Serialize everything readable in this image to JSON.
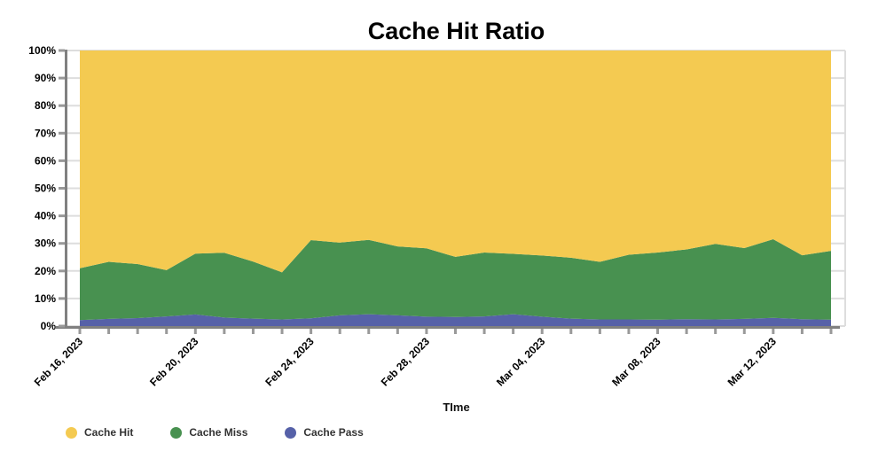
{
  "page": {
    "background": "#ffffff"
  },
  "chart_data": {
    "type": "area",
    "stacked": true,
    "title": "Cache Hit Ratio",
    "xlabel": "TIme",
    "ylabel": "",
    "ylim": [
      0,
      100
    ],
    "grid": true,
    "legend_position": "bottom-left",
    "axis_color": "#808080",
    "tick_color": "#999999",
    "grid_color": "#dddddd",
    "label_color": "#000000",
    "y_tick_labels": [
      "0%",
      "10%",
      "20%",
      "30%",
      "40%",
      "50%",
      "60%",
      "70%",
      "80%",
      "90%",
      "100%"
    ],
    "x_label_every": 4,
    "x": [
      "Feb 16, 2023",
      "Feb 17, 2023",
      "Feb 18, 2023",
      "Feb 19, 2023",
      "Feb 20, 2023",
      "Feb 21, 2023",
      "Feb 22, 2023",
      "Feb 23, 2023",
      "Feb 24, 2023",
      "Feb 25, 2023",
      "Feb 26, 2023",
      "Feb 27, 2023",
      "Feb 28, 2023",
      "Mar 01, 2023",
      "Mar 02, 2023",
      "Mar 03, 2023",
      "Mar 04, 2023",
      "Mar 05, 2023",
      "Mar 06, 2023",
      "Mar 07, 2023",
      "Mar 08, 2023",
      "Mar 09, 2023",
      "Mar 10, 2023",
      "Mar 11, 2023",
      "Mar 12, 2023",
      "Mar 13, 2023",
      "Mar 14, 2023"
    ],
    "series": [
      {
        "name": "Cache Hit",
        "color": "#F4CA51",
        "values": [
          79.0,
          76.7,
          77.5,
          79.7,
          73.7,
          73.4,
          76.6,
          80.5,
          68.8,
          69.7,
          68.7,
          71.1,
          71.8,
          74.9,
          73.3,
          73.8,
          74.4,
          75.2,
          76.7,
          74.1,
          73.3,
          72.2,
          70.2,
          71.7,
          68.5,
          74.3,
          72.7
        ]
      },
      {
        "name": "Cache Miss",
        "color": "#489150",
        "values": [
          18.8,
          20.7,
          19.6,
          16.8,
          22.1,
          23.5,
          20.7,
          17.1,
          28.4,
          26.4,
          27.0,
          25.0,
          24.8,
          21.8,
          23.2,
          21.9,
          22.2,
          22.1,
          20.9,
          23.5,
          24.4,
          25.3,
          27.4,
          25.7,
          28.5,
          23.2,
          25.0
        ]
      },
      {
        "name": "Cache Pass",
        "color": "#5661A8",
        "values": [
          2.2,
          2.6,
          2.9,
          3.5,
          4.2,
          3.1,
          2.7,
          2.4,
          2.8,
          3.9,
          4.3,
          3.9,
          3.4,
          3.3,
          3.5,
          4.3,
          3.4,
          2.7,
          2.4,
          2.4,
          2.3,
          2.5,
          2.4,
          2.6,
          3.0,
          2.5,
          2.3
        ]
      }
    ],
    "stack_order_bottom_to_top": [
      "Cache Pass",
      "Cache Miss",
      "Cache Hit"
    ]
  }
}
